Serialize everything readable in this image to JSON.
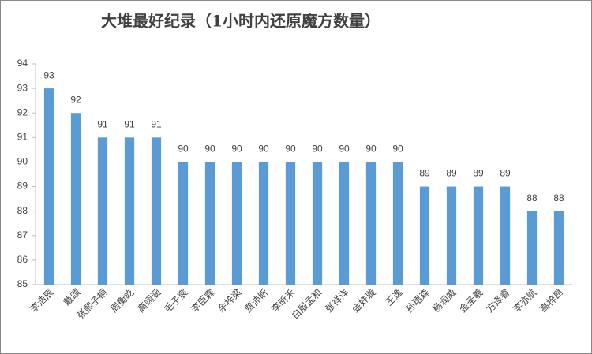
{
  "chart_data": {
    "type": "bar",
    "title": "大堆最好纪录（1小时内还原魔方数量）",
    "categories": [
      "李浩辰",
      "戴颂",
      "张熙子桐",
      "周衡屹",
      "高翊涵",
      "毛子宸",
      "李臣霖",
      "余梓梁",
      "贾沛昕",
      "李昕禾",
      "白殷孟和",
      "张祥洋",
      "金姝璇",
      "王逸",
      "孙珺森",
      "杨润威",
      "金圣羲",
      "方泽睿",
      "李亦航",
      "高梓昂"
    ],
    "values": [
      93,
      92,
      91,
      91,
      91,
      90,
      90,
      90,
      90,
      90,
      90,
      90,
      90,
      90,
      89,
      89,
      89,
      89,
      88,
      88
    ],
    "color": "#5b9bd5",
    "ylim": [
      85,
      94
    ],
    "yticks": [
      85,
      86,
      87,
      88,
      89,
      90,
      91,
      92,
      93,
      94
    ],
    "grid": false
  }
}
